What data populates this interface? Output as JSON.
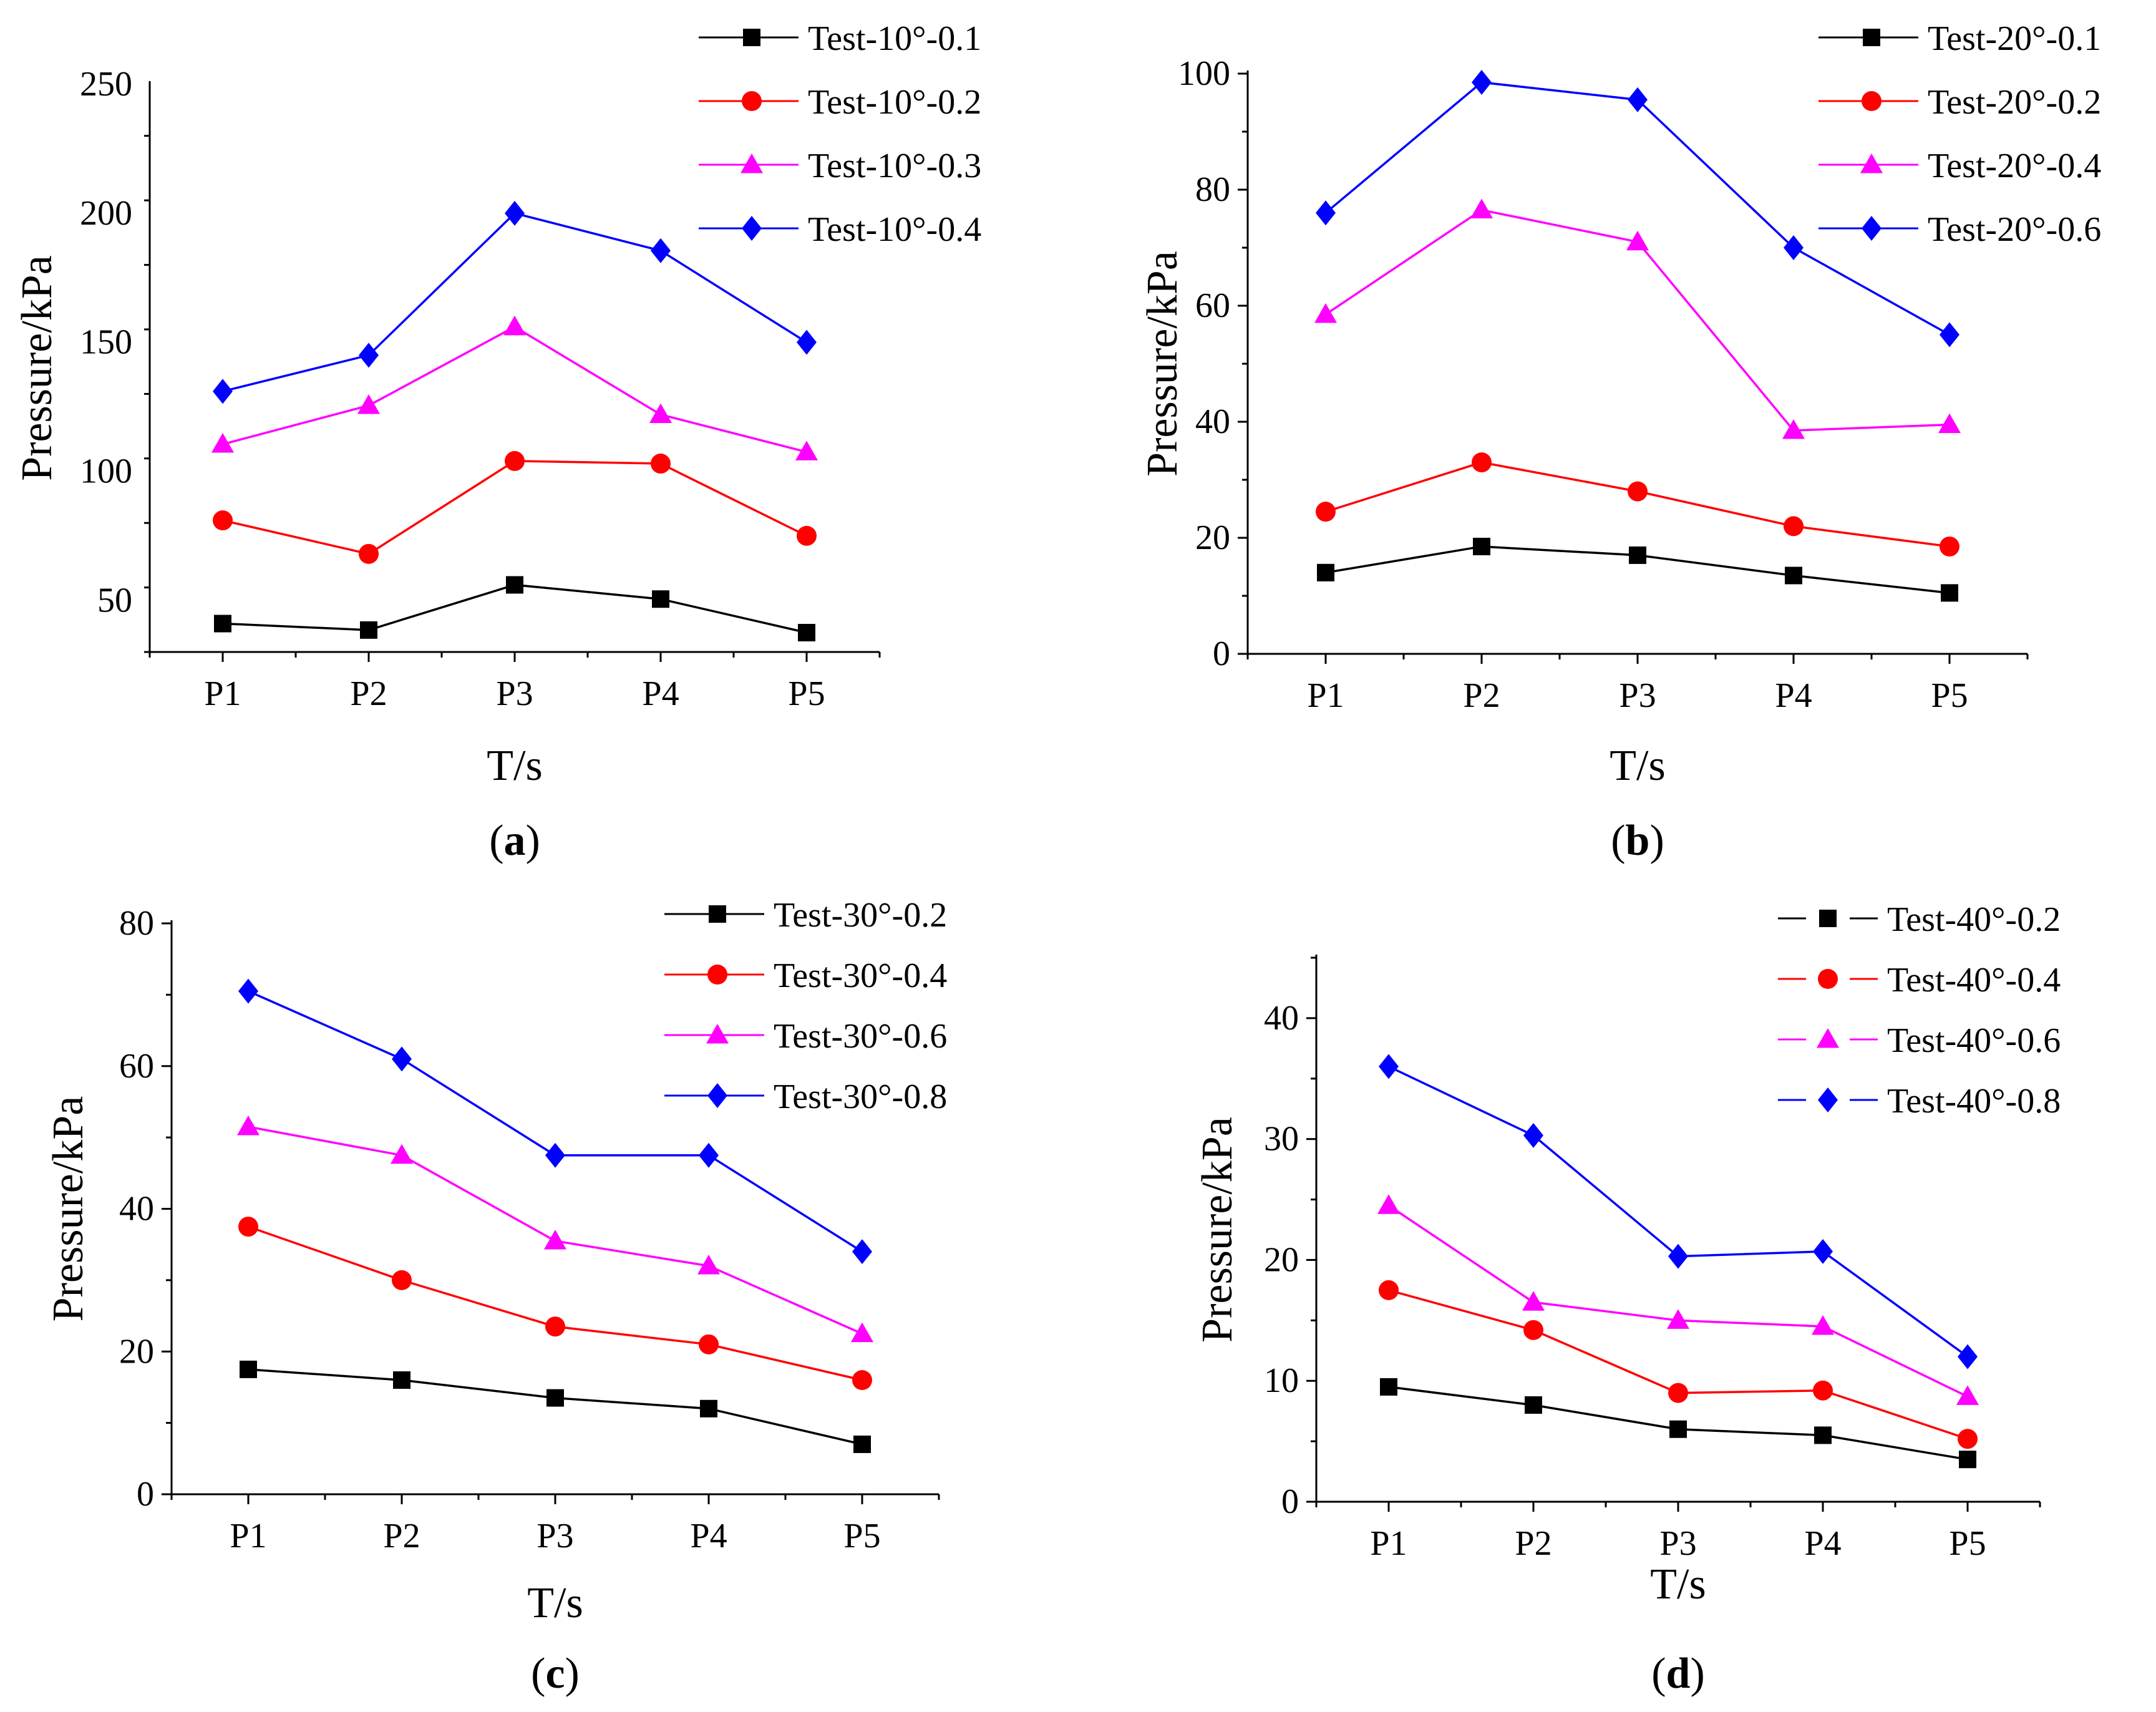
{
  "colors": {
    "black": "#000000",
    "red": "#ff0000",
    "magenta": "#ff00ff",
    "blue": "#0000ff"
  },
  "chart_data": [
    {
      "panel": "a",
      "panel_label": "a",
      "type": "line",
      "xlabel": "T/s",
      "ylabel": "Pressure/kPa",
      "categories": [
        "P1",
        "P2",
        "P3",
        "P4",
        "P5"
      ],
      "ylim": [
        30,
        250
      ],
      "yticks": [
        50,
        100,
        150,
        200,
        250
      ],
      "series": [
        {
          "name": "Test-10°-0.1",
          "color": "#000000",
          "marker": "square",
          "values": [
            41,
            38.5,
            56,
            50.5,
            37.5
          ]
        },
        {
          "name": "Test-10°-0.2",
          "color": "#ff0000",
          "marker": "circle",
          "values": [
            81,
            68,
            104,
            103,
            75
          ]
        },
        {
          "name": "Test-10°-0.3",
          "color": "#ff00ff",
          "marker": "triangle",
          "values": [
            110.5,
            125.5,
            156,
            122,
            107.5
          ]
        },
        {
          "name": "Test-10°-0.4",
          "color": "#0000ff",
          "marker": "diamond",
          "values": [
            131,
            145,
            200,
            185.5,
            150
          ]
        }
      ]
    },
    {
      "panel": "b",
      "panel_label": "b",
      "type": "line",
      "xlabel": "T/s",
      "ylabel": "Pressure/kPa",
      "categories": [
        "P1",
        "P2",
        "P3",
        "P4",
        "P5"
      ],
      "ylim": [
        0,
        100
      ],
      "yticks": [
        0,
        20,
        40,
        60,
        80,
        100
      ],
      "series": [
        {
          "name": "Test-20°-0.1",
          "color": "#000000",
          "marker": "square",
          "values": [
            14,
            18.5,
            17,
            13.5,
            10.5
          ]
        },
        {
          "name": "Test-20°-0.2",
          "color": "#ff0000",
          "marker": "circle",
          "values": [
            24.5,
            33,
            28,
            22,
            18.5
          ]
        },
        {
          "name": "Test-20°-0.4",
          "color": "#ff00ff",
          "marker": "triangle",
          "values": [
            58.5,
            76.5,
            71,
            38.5,
            39.5
          ]
        },
        {
          "name": "Test-20°-0.6",
          "color": "#0000ff",
          "marker": "diamond",
          "values": [
            76,
            98.5,
            95.5,
            70,
            55
          ]
        }
      ]
    },
    {
      "panel": "c",
      "panel_label": "c",
      "type": "line",
      "xlabel": "T/s",
      "ylabel": "Pressure/kPa",
      "categories": [
        "P1",
        "P2",
        "P3",
        "P4",
        "P5"
      ],
      "ylim": [
        0,
        80
      ],
      "yticks": [
        0,
        20,
        40,
        60,
        80
      ],
      "series": [
        {
          "name": "Test-30°-0.2",
          "color": "#000000",
          "marker": "square",
          "values": [
            17.5,
            16,
            13.5,
            12,
            7
          ]
        },
        {
          "name": "Test-30°-0.4",
          "color": "#ff0000",
          "marker": "circle",
          "values": [
            37.5,
            30,
            23.5,
            21,
            16
          ]
        },
        {
          "name": "Test-30°-0.6",
          "color": "#ff00ff",
          "marker": "triangle",
          "values": [
            51.5,
            47.5,
            35.5,
            32,
            22.5
          ]
        },
        {
          "name": "Test-30°-0.8",
          "color": "#0000ff",
          "marker": "diamond",
          "values": [
            70.5,
            61,
            47.5,
            47.5,
            34
          ]
        }
      ]
    },
    {
      "panel": "d",
      "panel_label": "d",
      "type": "scatter-line",
      "xlabel": "T/s",
      "ylabel": "Pressure/kPa",
      "categories": [
        "P1",
        "P2",
        "P3",
        "P4",
        "P5"
      ],
      "ylim": [
        0,
        45
      ],
      "yticks": [
        0,
        10,
        20,
        30,
        40
      ],
      "series": [
        {
          "name": "Test-40°-0.2",
          "color": "#000000",
          "marker": "square",
          "values": [
            9.5,
            8,
            6,
            5.5,
            3.5
          ]
        },
        {
          "name": "Test-40°-0.4",
          "color": "#ff0000",
          "marker": "circle",
          "values": [
            17.5,
            14.2,
            9,
            9.2,
            5.2
          ]
        },
        {
          "name": "Test-40°-0.6",
          "color": "#ff00ff",
          "marker": "triangle",
          "values": [
            24.5,
            16.5,
            15,
            14.5,
            8.7
          ]
        },
        {
          "name": "Test-40°-0.8",
          "color": "#0000ff",
          "marker": "diamond",
          "values": [
            36,
            30.3,
            20.3,
            20.7,
            12
          ]
        }
      ]
    }
  ]
}
